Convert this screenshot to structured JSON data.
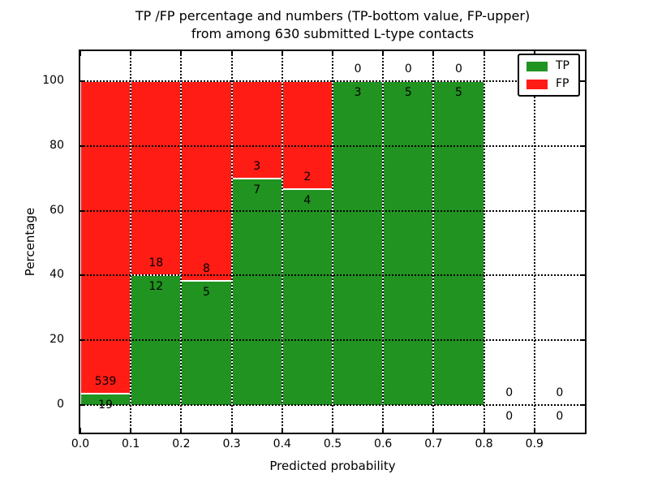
{
  "title": {
    "line1": "TP /FP percentage and numbers (TP-bottom value, FP-upper)",
    "line2": "from among 630 submitted L-type contacts"
  },
  "axes": {
    "x_label": "Predicted probability",
    "y_label": "Percentage"
  },
  "legend": {
    "items": [
      {
        "label": "TP",
        "color": "#209320"
      },
      {
        "label": "FP",
        "color": "#ff1c15"
      }
    ]
  },
  "chart_data": {
    "type": "bar",
    "stacked": true,
    "title": "TP /FP percentage and numbers (TP-bottom value, FP-upper) from among 630 submitted L-type contacts",
    "xlabel": "Predicted probability",
    "ylabel": "Percentage",
    "total_submitted_contacts": 630,
    "bins": {
      "starts": [
        0.0,
        0.1,
        0.2,
        0.3,
        0.4,
        0.5,
        0.6,
        0.7,
        0.8,
        0.9
      ],
      "width": 0.1
    },
    "series": [
      {
        "name": "TP",
        "color": "#209320",
        "counts": [
          19,
          12,
          5,
          7,
          4,
          3,
          5,
          5,
          0,
          0
        ]
      },
      {
        "name": "FP",
        "color": "#ff1c15",
        "counts": [
          539,
          18,
          8,
          3,
          2,
          0,
          0,
          0,
          0,
          0
        ]
      }
    ],
    "tp_percent_by_bin": [
      3.4,
      40.0,
      38.5,
      70.0,
      66.7,
      100.0,
      100.0,
      100.0,
      null,
      null
    ],
    "bar_labels_note": "FP count printed above TP/FP boundary, TP count printed below it",
    "xlim": [
      0.0,
      1.0
    ],
    "ylim_percent": [
      -8.5,
      109.3
    ],
    "x_ticks": [
      {
        "v": 0.0,
        "label": "0.0"
      },
      {
        "v": 0.1,
        "label": "0.1"
      },
      {
        "v": 0.2,
        "label": "0.2"
      },
      {
        "v": 0.3,
        "label": "0.3"
      },
      {
        "v": 0.4,
        "label": "0.4"
      },
      {
        "v": 0.5,
        "label": "0.5"
      },
      {
        "v": 0.6,
        "label": "0.6"
      },
      {
        "v": 0.7,
        "label": "0.7"
      },
      {
        "v": 0.8,
        "label": "0.8"
      },
      {
        "v": 0.9,
        "label": "0.9"
      }
    ],
    "y_ticks": [
      {
        "v": 0,
        "label": "0"
      },
      {
        "v": 20,
        "label": "20"
      },
      {
        "v": 40,
        "label": "40"
      },
      {
        "v": 60,
        "label": "60"
      },
      {
        "v": 80,
        "label": "80"
      },
      {
        "v": 100,
        "label": "100"
      }
    ],
    "grid": "dotted black, on both axes, drawn over bars",
    "legend_position": "upper right"
  }
}
